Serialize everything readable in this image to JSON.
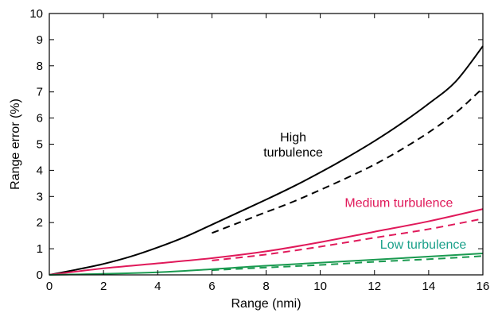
{
  "chart_data": {
    "type": "line",
    "title": "",
    "xlabel": "Range (nmi)",
    "ylabel": "Range error (%)",
    "xlim": [
      0,
      16
    ],
    "ylim": [
      0,
      10
    ],
    "xticks": [
      0,
      2,
      4,
      6,
      8,
      10,
      12,
      14,
      16
    ],
    "yticks": [
      0,
      1,
      2,
      3,
      4,
      5,
      6,
      7,
      8,
      9,
      10
    ],
    "grid": false,
    "legend": "none",
    "colors": {
      "high": "#000000",
      "medium": "#e0195a",
      "low": "#1a9a50",
      "low_label": "#1aa08a"
    },
    "annotations": [
      {
        "lines": [
          "High",
          "turbulence"
        ],
        "color": "#000000",
        "x": 9.0,
        "y": 5.1
      },
      {
        "lines": [
          "Medium turbulence"
        ],
        "color": "#e0195a",
        "x": 12.9,
        "y": 2.6
      },
      {
        "lines": [
          "Low turbulence"
        ],
        "color": "#1aa08a",
        "x": 13.8,
        "y": 1.0
      }
    ],
    "series": [
      {
        "group": "high",
        "style": "solid",
        "x": [
          0,
          1,
          2,
          3,
          4,
          5,
          6,
          7,
          8,
          9,
          10,
          11,
          12,
          13,
          14,
          15,
          16
        ],
        "y": [
          0,
          0.2,
          0.42,
          0.7,
          1.05,
          1.45,
          1.92,
          2.4,
          2.88,
          3.38,
          3.92,
          4.5,
          5.12,
          5.8,
          6.55,
          7.4,
          8.75
        ]
      },
      {
        "group": "high",
        "style": "dashed",
        "x": [
          6,
          7,
          8,
          9,
          10,
          11,
          12,
          13,
          14,
          15,
          16
        ],
        "y": [
          1.6,
          2.0,
          2.4,
          2.8,
          3.25,
          3.72,
          4.22,
          4.8,
          5.45,
          6.2,
          7.15
        ]
      },
      {
        "group": "medium",
        "style": "solid",
        "x": [
          0,
          2,
          4,
          6,
          8,
          10,
          12,
          14,
          16
        ],
        "y": [
          0,
          0.25,
          0.44,
          0.64,
          0.9,
          1.25,
          1.65,
          2.05,
          2.52
        ]
      },
      {
        "group": "medium",
        "style": "dashed",
        "x": [
          6,
          8,
          10,
          12,
          14,
          16
        ],
        "y": [
          0.55,
          0.78,
          1.08,
          1.42,
          1.75,
          2.15
        ]
      },
      {
        "group": "low",
        "style": "solid",
        "x": [
          0,
          4,
          8,
          12,
          16
        ],
        "y": [
          0,
          0.1,
          0.35,
          0.58,
          0.82
        ]
      },
      {
        "group": "low",
        "style": "dashed",
        "x": [
          6,
          8,
          10,
          12,
          14,
          16
        ],
        "y": [
          0.18,
          0.28,
          0.38,
          0.5,
          0.6,
          0.72
        ]
      }
    ]
  }
}
